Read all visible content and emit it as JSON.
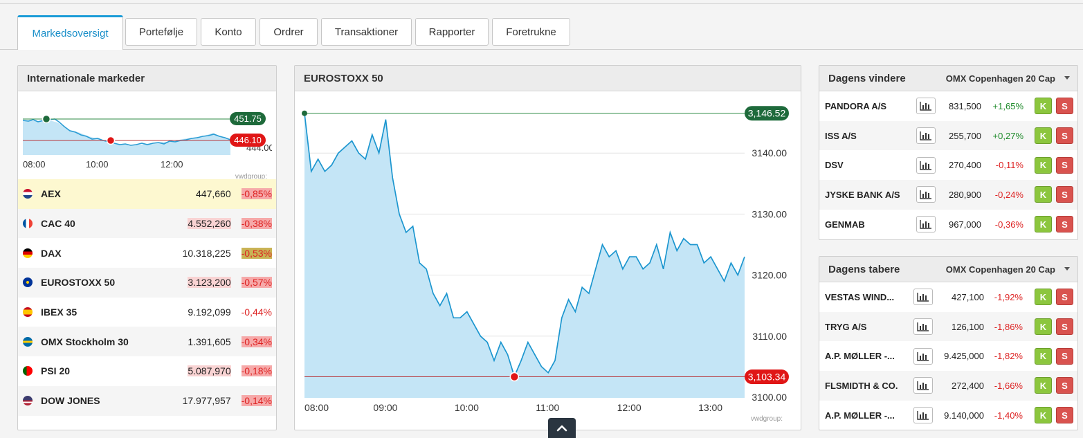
{
  "tabs": [
    {
      "label": "Markedsoversigt",
      "active": true
    },
    {
      "label": "Portefølje"
    },
    {
      "label": "Konto"
    },
    {
      "label": "Ordrer"
    },
    {
      "label": "Transaktioner"
    },
    {
      "label": "Rapporter"
    },
    {
      "label": "Foretrukne"
    }
  ],
  "intl": {
    "title": "Internationale markeder",
    "chart": {
      "high_label": "451.75",
      "low_label": "446.10",
      "partial_tick": "444.00",
      "x_ticks": [
        "08:00",
        "10:00",
        "12:00"
      ],
      "source": "vwdgroup:"
    },
    "rows": [
      {
        "flag": "nl",
        "name": "AEX",
        "value": "447,660",
        "change": "-0,85%"
      },
      {
        "flag": "fr",
        "name": "CAC 40",
        "value": "4.552,260",
        "change": "-0,38%"
      },
      {
        "flag": "de",
        "name": "DAX",
        "value": "10.318,225",
        "change": "-0,53%"
      },
      {
        "flag": "eu",
        "name": "EUROSTOXX 50",
        "value": "3.123,200",
        "change": "-0,57%"
      },
      {
        "flag": "es",
        "name": "IBEX 35",
        "value": "9.192,099",
        "change": "-0,44%"
      },
      {
        "flag": "se",
        "name": "OMX Stockholm 30",
        "value": "1.391,605",
        "change": "-0,34%"
      },
      {
        "flag": "pt",
        "name": "PSI 20",
        "value": "5.087,970",
        "change": "-0,18%"
      },
      {
        "flag": "us",
        "name": "DOW JONES",
        "value": "17.977,957",
        "change": "-0,14%"
      }
    ]
  },
  "main": {
    "title": "EUROSTOXX 50",
    "high_label": "3,146.52",
    "low_label": "3,103.34",
    "source": "vwdgroup:"
  },
  "chart_data": {
    "type": "area",
    "title": "EUROSTOXX 50",
    "xlabel": "",
    "ylabel": "",
    "x_ticks": [
      "08:00",
      "09:00",
      "10:00",
      "11:00",
      "12:00",
      "13:00"
    ],
    "y_ticks": [
      "3100.00",
      "3110.00",
      "3120.00",
      "3130.00",
      "3140.00"
    ],
    "ylim": [
      3100,
      3148
    ],
    "grid": true,
    "high": 3146.52,
    "low": 3103.34,
    "series": [
      {
        "x": [
          "08:00",
          "08:05",
          "08:10",
          "08:15",
          "08:20",
          "08:25",
          "08:30",
          "08:35",
          "08:40",
          "08:45",
          "08:50",
          "08:55",
          "09:00",
          "09:05",
          "09:10",
          "09:15",
          "09:20",
          "09:25",
          "09:30",
          "09:35",
          "09:40",
          "09:45",
          "09:50",
          "09:55",
          "10:00",
          "10:05",
          "10:10",
          "10:15",
          "10:20",
          "10:25",
          "10:30",
          "10:35",
          "10:40",
          "10:45",
          "10:50",
          "10:55",
          "11:00",
          "11:05",
          "11:10",
          "11:15",
          "11:20",
          "11:25",
          "11:30",
          "11:35",
          "11:40",
          "11:45",
          "11:50",
          "11:55",
          "12:00",
          "12:05",
          "12:10",
          "12:15",
          "12:20",
          "12:25",
          "12:30",
          "12:35",
          "12:40",
          "12:45",
          "12:50",
          "12:55",
          "13:00",
          "13:05",
          "13:10",
          "13:15",
          "13:20",
          "13:25"
        ],
        "values": [
          3146.5,
          3137,
          3139,
          3137,
          3138,
          3140,
          3141,
          3142,
          3140,
          3139,
          3143,
          3140,
          3145.5,
          3136,
          3130,
          3127,
          3128,
          3122,
          3121,
          3117,
          3115,
          3117,
          3113,
          3113,
          3114,
          3112,
          3110,
          3109,
          3106,
          3109,
          3107,
          3103.4,
          3106,
          3109,
          3107,
          3105,
          3104,
          3106,
          3113,
          3116,
          3114,
          3118,
          3117,
          3121,
          3125,
          3123,
          3124,
          3121,
          3123,
          3123,
          3121,
          3122,
          3125,
          3121,
          3127,
          3124,
          3126,
          3125,
          3125,
          3122,
          3123,
          3121,
          3119,
          3122,
          3120,
          3123
        ]
      }
    ]
  },
  "winners": {
    "title": "Dagens vindere",
    "market": "OMX Copenhagen 20 Cap",
    "rows": [
      {
        "name": "PANDORA A/S",
        "value": "831,500",
        "change": "+1,65%",
        "dir": "pos"
      },
      {
        "name": "ISS A/S",
        "value": "255,700",
        "change": "+0,27%",
        "dir": "pos"
      },
      {
        "name": "DSV",
        "value": "270,400",
        "change": "-0,11%",
        "dir": "neg"
      },
      {
        "name": "JYSKE BANK A/S",
        "value": "280,900",
        "change": "-0,24%",
        "dir": "neg"
      },
      {
        "name": "GENMAB",
        "value": "967,000",
        "change": "-0,36%",
        "dir": "neg"
      }
    ]
  },
  "losers": {
    "title": "Dagens tabere",
    "market": "OMX Copenhagen 20 Cap",
    "rows": [
      {
        "name": "VESTAS WIND...",
        "value": "427,100",
        "change": "-1,92%",
        "dir": "neg"
      },
      {
        "name": "TRYG A/S",
        "value": "126,100",
        "change": "-1,86%",
        "dir": "neg"
      },
      {
        "name": "A.P. MØLLER -...",
        "value": "9.425,000",
        "change": "-1,82%",
        "dir": "neg"
      },
      {
        "name": "FLSMIDTH & CO.",
        "value": "272,400",
        "change": "-1,66%",
        "dir": "neg"
      },
      {
        "name": "A.P. MØLLER -...",
        "value": "9.140,000",
        "change": "-1,40%",
        "dir": "neg"
      }
    ]
  },
  "buttons": {
    "buy": "K",
    "sell": "S"
  }
}
